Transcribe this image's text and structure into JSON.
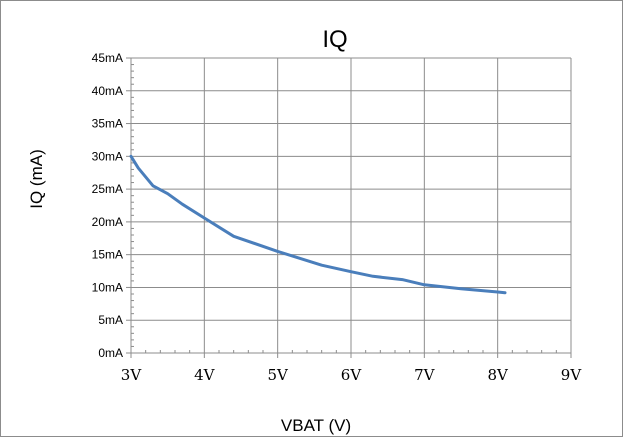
{
  "chart_data": {
    "type": "line",
    "title": "IQ",
    "xlabel": "VBAT (V)",
    "ylabel": "IQ (mA)",
    "xlim": [
      3,
      9
    ],
    "ylim": [
      0,
      45
    ],
    "x_ticks": [
      "3V",
      "4V",
      "5V",
      "6V",
      "7V",
      "8V",
      "9V"
    ],
    "y_ticks": [
      "0mA",
      "5mA",
      "10mA",
      "15mA",
      "20mA",
      "25mA",
      "30mA",
      "35mA",
      "40mA",
      "45mA"
    ],
    "grid": true,
    "series": [
      {
        "color": "#4a7ebb",
        "x": [
          3.0,
          3.1,
          3.3,
          3.5,
          3.7,
          4.0,
          4.4,
          5.0,
          5.6,
          6.0,
          6.3,
          6.7,
          7.0,
          7.5,
          8.0,
          8.1
        ],
        "y": [
          30.0,
          28.2,
          25.5,
          24.3,
          22.7,
          20.6,
          17.8,
          15.5,
          13.4,
          12.4,
          11.7,
          11.2,
          10.4,
          9.8,
          9.3,
          9.2
        ]
      }
    ]
  }
}
